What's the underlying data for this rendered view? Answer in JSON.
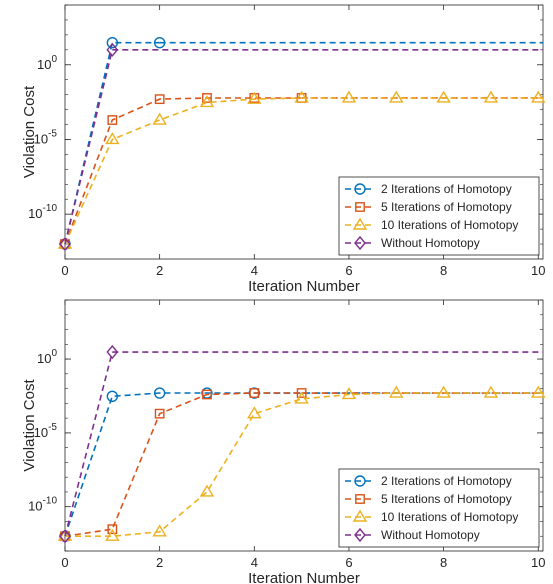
{
  "chart_data": [
    {
      "type": "line",
      "xlabel": "Iteration Number",
      "ylabel": "Violation Cost",
      "y_scale": "log",
      "xlim": [
        0,
        10.1
      ],
      "ylim": [
        1e-13,
        10000.0
      ],
      "xticks": [
        0,
        2,
        4,
        6,
        8,
        10
      ],
      "yticks": [
        {
          "value": 1,
          "base": "10",
          "exp": "0"
        },
        {
          "value": 1e-05,
          "base": "10",
          "exp": "-5"
        },
        {
          "value": 1e-10,
          "base": "10",
          "exp": "-10"
        }
      ],
      "grid": false,
      "legend_position": "bottom-right",
      "series": [
        {
          "name": "2 Iterations of Homotopy",
          "color": "#0072BD",
          "marker": "circle",
          "x": [
            0,
            1,
            2
          ],
          "y": [
            1e-12,
            30,
            30
          ],
          "final_dashed_level": 30
        },
        {
          "name": "5 Iterations of Homotopy",
          "color": "#D95319",
          "marker": "square",
          "x": [
            0,
            1,
            2,
            3,
            4,
            5
          ],
          "y": [
            1e-12,
            0.0002,
            0.005,
            0.006,
            0.006,
            0.006
          ],
          "final_dashed_level": 0.006
        },
        {
          "name": "10 Iterations of Homotopy",
          "color": "#EDB120",
          "marker": "triangle",
          "x": [
            0,
            1,
            2,
            3,
            4,
            5,
            6,
            7,
            8,
            9,
            10
          ],
          "y": [
            1e-12,
            1e-05,
            0.0002,
            0.003,
            0.005,
            0.006,
            0.006,
            0.006,
            0.006,
            0.006,
            0.006
          ],
          "final_dashed_level": 0.006
        },
        {
          "name": "Without Homotopy",
          "color": "#7E2F8E",
          "marker": "diamond",
          "x": [
            0,
            1
          ],
          "y": [
            1e-12,
            10
          ],
          "final_dashed_level": 10
        }
      ]
    },
    {
      "type": "line",
      "xlabel": "Iteration Number",
      "ylabel": "Violation Cost",
      "y_scale": "log",
      "xlim": [
        0,
        10.1
      ],
      "ylim": [
        1e-13,
        10000.0
      ],
      "xticks": [
        0,
        2,
        4,
        6,
        8,
        10
      ],
      "yticks": [
        {
          "value": 1,
          "base": "10",
          "exp": "0"
        },
        {
          "value": 1e-05,
          "base": "10",
          "exp": "-5"
        },
        {
          "value": 1e-10,
          "base": "10",
          "exp": "-10"
        }
      ],
      "grid": false,
      "legend_position": "bottom-right",
      "series": [
        {
          "name": "2 Iterations of Homotopy",
          "color": "#0072BD",
          "marker": "circle",
          "x": [
            0,
            1,
            2,
            3,
            4
          ],
          "y": [
            1e-12,
            0.003,
            0.005,
            0.005,
            0.005
          ],
          "final_dashed_level": 0.005
        },
        {
          "name": "5 Iterations of Homotopy",
          "color": "#D95319",
          "marker": "square",
          "x": [
            0,
            1,
            2,
            3,
            4,
            5
          ],
          "y": [
            1e-12,
            3e-12,
            0.0002,
            0.004,
            0.005,
            0.005
          ],
          "final_dashed_level": 0.005
        },
        {
          "name": "10 Iterations of Homotopy",
          "color": "#EDB120",
          "marker": "triangle",
          "x": [
            0,
            1,
            2,
            3,
            4,
            5,
            6,
            7,
            8,
            9,
            10
          ],
          "y": [
            1e-12,
            1e-12,
            2e-12,
            1e-09,
            0.0002,
            0.002,
            0.004,
            0.005,
            0.005,
            0.005,
            0.005
          ],
          "final_dashed_level": 0.005
        },
        {
          "name": "Without Homotopy",
          "color": "#7E2F8E",
          "marker": "diamond",
          "x": [
            0,
            1
          ],
          "y": [
            1e-12,
            3
          ],
          "final_dashed_level": 3
        }
      ]
    }
  ]
}
